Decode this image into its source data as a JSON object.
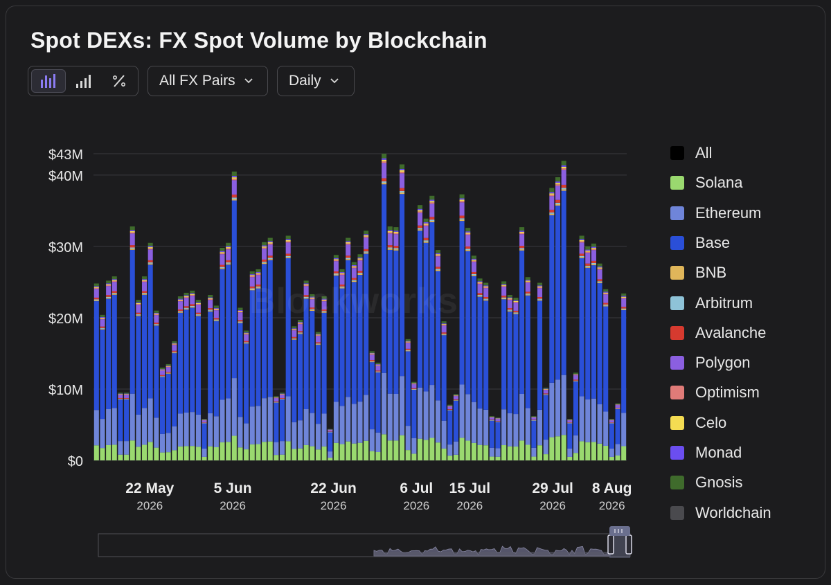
{
  "title": "Spot DEXs: FX Spot Volume by Blockchain",
  "toolbar": {
    "view_buttons": [
      "bar-chart-icon",
      "bar-chart-outline-icon",
      "percent-icon"
    ],
    "pair_filter": "All FX Pairs",
    "interval": "Daily"
  },
  "watermark": "Blockworks",
  "colors": {
    "All": "#000000",
    "Solana": "#9ad96f",
    "Ethereum": "#6f85d9",
    "Base": "#2a4fd8",
    "BNB": "#e0b65a",
    "Arbitrum": "#8ec3d8",
    "Avalanche": "#d63a2f",
    "Polygon": "#8b5fe0",
    "Optimism": "#e07b78",
    "Celo": "#f4dc52",
    "Monad": "#6b4ef0",
    "Gnosis": "#3f6b2c",
    "Worldchain": "#4a4a4e",
    "accent": "#7b6cf0"
  },
  "legend": [
    "All",
    "Solana",
    "Ethereum",
    "Base",
    "BNB",
    "Arbitrum",
    "Avalanche",
    "Polygon",
    "Optimism",
    "Celo",
    "Monad",
    "Gnosis",
    "Worldchain"
  ],
  "chart_data": {
    "type": "bar",
    "stacked": true,
    "title": "Spot DEXs: FX Spot Volume by Blockchain",
    "ylim": [
      0,
      43
    ],
    "y_ticks": [
      0,
      10,
      20,
      30,
      40,
      43
    ],
    "y_tick_labels": [
      "$0",
      "$10M",
      "$20M",
      "$30M",
      "$40M",
      "$43M"
    ],
    "x_range": [
      "2026-05-13",
      "2026-08-10"
    ],
    "x_ticks": [
      {
        "date": "2026-05-22",
        "label": "22 May",
        "year": "2026"
      },
      {
        "date": "2026-06-05",
        "label": "5 Jun",
        "year": "2026"
      },
      {
        "date": "2026-06-22",
        "label": "22 Jun",
        "year": "2026"
      },
      {
        "date": "2026-07-06",
        "label": "6 Jul",
        "year": "2026"
      },
      {
        "date": "2026-07-15",
        "label": "15 Jul",
        "year": "2026"
      },
      {
        "date": "2026-07-29",
        "label": "29 Jul",
        "year": "2026"
      },
      {
        "date": "2026-08-08",
        "label": "8 Aug",
        "year": "2026"
      }
    ],
    "totals": [
      24.8,
      20.4,
      25.2,
      25.8,
      9.5,
      9.5,
      32.8,
      22.5,
      25.8,
      30.5,
      21.0,
      13.0,
      13.5,
      16.7,
      23.0,
      23.5,
      23.8,
      22.5,
      5.8,
      23.2,
      21.7,
      29.8,
      30.5,
      40.5,
      21.4,
      18.2,
      26.5,
      26.8,
      30.6,
      31.2,
      9.0,
      9.5,
      31.5,
      18.8,
      19.7,
      25.2,
      23.3,
      18.0,
      23.0,
      4.4,
      28.8,
      26.8,
      31.2,
      27.8,
      28.9,
      32.2,
      15.3,
      13.7,
      43.0,
      32.8,
      32.7,
      41.5,
      17.0,
      11.0,
      35.8,
      33.9,
      37.1,
      29.5,
      19.5,
      7.8,
      9.3,
      37.3,
      32.6,
      28.7,
      25.5,
      24.9,
      6.2,
      6.0,
      25.1,
      23.2,
      22.8,
      32.7,
      25.7,
      6.2,
      24.9,
      10.2,
      38.2,
      39.7,
      42.0,
      5.8,
      12.3,
      31.5,
      30.0,
      30.4,
      27.6,
      24.0,
      5.8,
      8.0,
      23.4
    ],
    "shares": {
      "Solana": 0.085,
      "Ethereum": 0.2,
      "Base": 0.615,
      "BNB": 0.005,
      "Arbitrum": 0.005,
      "Avalanche": 0.01,
      "Polygon": 0.05,
      "Optimism": 0.005,
      "Celo": 0.005,
      "Monad": 0.005,
      "Gnosis": 0.015,
      "Worldchain": 0
    },
    "legend_position": "right",
    "grid": true
  }
}
